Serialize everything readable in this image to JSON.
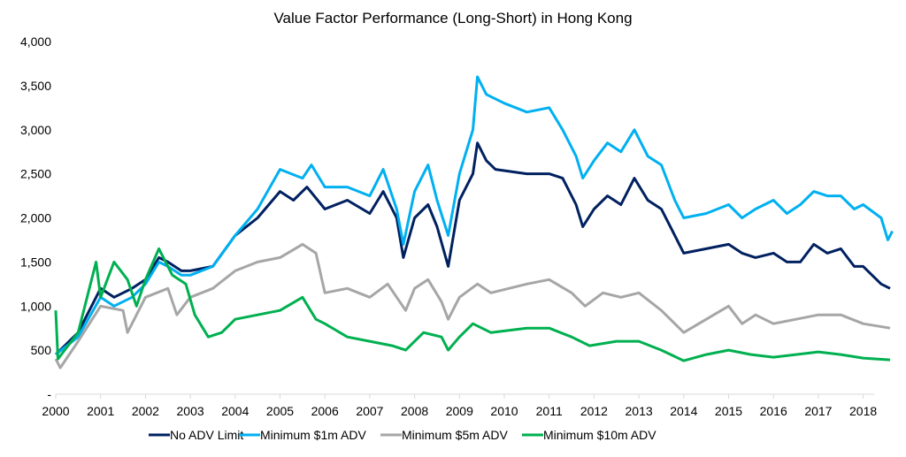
{
  "chart_data": {
    "type": "line",
    "title": "Value Factor Performance (Long-Short) in Hong Kong",
    "xlabel": "",
    "ylabel": "",
    "xlim": [
      2000,
      2018.7
    ],
    "ylim": [
      0,
      4000
    ],
    "x_ticks": [
      "2000",
      "2001",
      "2002",
      "2003",
      "2004",
      "2005",
      "2006",
      "2007",
      "2008",
      "2009",
      "2010",
      "2011",
      "2012",
      "2013",
      "2014",
      "2015",
      "2016",
      "2017",
      "2018"
    ],
    "y_ticks": [
      "-",
      "500",
      "1,000",
      "1,500",
      "2,000",
      "2,500",
      "3,000",
      "3,500",
      "4,000"
    ],
    "grid": false,
    "legend_position": "bottom",
    "series": [
      {
        "name": "No ADV Limit",
        "color": "#002060",
        "x": [
          2000,
          2000.5,
          2001,
          2001.3,
          2001.7,
          2002,
          2002.3,
          2002.5,
          2002.8,
          2003,
          2003.5,
          2004,
          2004.5,
          2005,
          2005.3,
          2005.6,
          2006,
          2006.5,
          2007,
          2007.3,
          2007.6,
          2007.75,
          2008,
          2008.3,
          2008.5,
          2008.75,
          2009,
          2009.3,
          2009.4,
          2009.6,
          2009.8,
          2010.5,
          2011,
          2011.3,
          2011.6,
          2011.75,
          2012,
          2012.3,
          2012.6,
          2012.9,
          2013.2,
          2013.5,
          2013.8,
          2014,
          2014.5,
          2015,
          2015.3,
          2015.6,
          2016,
          2016.3,
          2016.6,
          2016.9,
          2017.2,
          2017.5,
          2017.8,
          2018,
          2018.4,
          2018.6
        ],
        "y": [
          450,
          700,
          1200,
          1100,
          1200,
          1300,
          1550,
          1500,
          1400,
          1400,
          1450,
          1800,
          2000,
          2300,
          2200,
          2350,
          2100,
          2200,
          2050,
          2300,
          2000,
          1550,
          2000,
          2150,
          1900,
          1450,
          2200,
          2500,
          2850,
          2650,
          2550,
          2500,
          2500,
          2450,
          2150,
          1900,
          2100,
          2250,
          2150,
          2450,
          2200,
          2100,
          1800,
          1600,
          1650,
          1700,
          1600,
          1550,
          1600,
          1500,
          1500,
          1700,
          1600,
          1650,
          1450,
          1450,
          1250,
          1200
        ]
      },
      {
        "name": "Minimum $1m ADV",
        "color": "#00B0F0",
        "x": [
          2000,
          2000.5,
          2001,
          2001.3,
          2001.7,
          2002,
          2002.3,
          2002.5,
          2002.8,
          2003,
          2003.5,
          2004,
          2004.5,
          2005,
          2005.5,
          2005.7,
          2006,
          2006.5,
          2007,
          2007.3,
          2007.6,
          2007.75,
          2008,
          2008.3,
          2008.5,
          2008.75,
          2009,
          2009.3,
          2009.4,
          2009.6,
          2010,
          2010.5,
          2011,
          2011.3,
          2011.6,
          2011.75,
          2012,
          2012.3,
          2012.6,
          2012.9,
          2013.2,
          2013.5,
          2013.8,
          2014,
          2014.5,
          2015,
          2015.3,
          2015.6,
          2016,
          2016.3,
          2016.6,
          2016.9,
          2017.2,
          2017.5,
          2017.8,
          2018,
          2018.4,
          2018.55,
          2018.65
        ],
        "y": [
          450,
          650,
          1100,
          1000,
          1100,
          1250,
          1500,
          1450,
          1350,
          1350,
          1450,
          1800,
          2100,
          2550,
          2450,
          2600,
          2350,
          2350,
          2250,
          2550,
          2100,
          1700,
          2300,
          2600,
          2200,
          1800,
          2500,
          3000,
          3600,
          3400,
          3300,
          3200,
          3250,
          3000,
          2700,
          2450,
          2650,
          2850,
          2750,
          3000,
          2700,
          2600,
          2200,
          2000,
          2050,
          2150,
          2000,
          2100,
          2200,
          2050,
          2150,
          2300,
          2250,
          2250,
          2100,
          2150,
          2000,
          1750,
          1850
        ]
      },
      {
        "name": "Minimum $5m ADV",
        "color": "#A6A6A6",
        "x": [
          2000,
          2000.1,
          2000.5,
          2001,
          2001.5,
          2001.6,
          2002,
          2002.5,
          2002.7,
          2003,
          2003.5,
          2004,
          2004.5,
          2005,
          2005.5,
          2005.8,
          2006,
          2006.5,
          2007,
          2007.4,
          2007.8,
          2008,
          2008.3,
          2008.6,
          2008.75,
          2009,
          2009.4,
          2009.7,
          2010.5,
          2011,
          2011.5,
          2011.8,
          2012.2,
          2012.6,
          2013,
          2013.5,
          2014,
          2014.5,
          2015,
          2015.3,
          2015.6,
          2016,
          2016.5,
          2017,
          2017.5,
          2018,
          2018.6
        ],
        "y": [
          400,
          300,
          600,
          1000,
          950,
          700,
          1100,
          1200,
          900,
          1100,
          1200,
          1400,
          1500,
          1550,
          1700,
          1600,
          1150,
          1200,
          1100,
          1250,
          950,
          1200,
          1300,
          1050,
          850,
          1100,
          1250,
          1150,
          1250,
          1300,
          1150,
          1000,
          1150,
          1100,
          1150,
          950,
          700,
          850,
          1000,
          800,
          900,
          800,
          850,
          900,
          900,
          800,
          750
        ]
      },
      {
        "name": "Minimum $10m ADV",
        "color": "#00B050",
        "x": [
          2000,
          2000.05,
          2000.5,
          2000.9,
          2001,
          2001.3,
          2001.6,
          2001.8,
          2002,
          2002.3,
          2002.6,
          2002.9,
          2003.1,
          2003.4,
          2003.7,
          2004,
          2004.5,
          2005,
          2005.5,
          2005.8,
          2006,
          2006.5,
          2007,
          2007.5,
          2007.8,
          2008.2,
          2008.6,
          2008.75,
          2009,
          2009.3,
          2009.7,
          2010.5,
          2011,
          2011.5,
          2011.9,
          2012.5,
          2013,
          2013.5,
          2014,
          2014.5,
          2015,
          2015.5,
          2016,
          2016.5,
          2017,
          2017.5,
          2018,
          2018.6
        ],
        "y": [
          950,
          400,
          700,
          1500,
          1100,
          1500,
          1300,
          1000,
          1300,
          1650,
          1350,
          1250,
          900,
          650,
          700,
          850,
          900,
          950,
          1100,
          850,
          800,
          650,
          600,
          550,
          500,
          700,
          650,
          500,
          650,
          800,
          700,
          750,
          750,
          650,
          550,
          600,
          600,
          500,
          380,
          450,
          500,
          450,
          420,
          450,
          480,
          450,
          410,
          390
        ]
      }
    ]
  }
}
